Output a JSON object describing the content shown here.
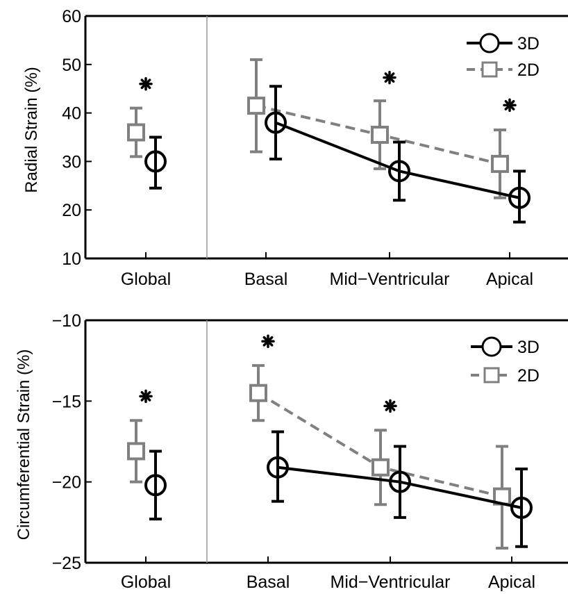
{
  "chart_data": [
    {
      "type": "scatter",
      "ylabel": "Radial Strain (%)",
      "ylim": [
        10,
        60
      ],
      "yticks": [
        10,
        20,
        30,
        40,
        50,
        60
      ],
      "categories": [
        "Global",
        "Basal",
        "Mid−Ventricular",
        "Apical"
      ],
      "grid": false,
      "legend_position": "top-right",
      "legend": [
        "3D",
        "2D"
      ],
      "series": [
        {
          "name": "3D",
          "marker": "circle",
          "color": "#000000",
          "line_style": "solid",
          "points": [
            {
              "category": "Global",
              "value": 30,
              "low": 24.5,
              "high": 35
            },
            {
              "category": "Basal",
              "value": 38,
              "low": 30.5,
              "high": 45.5
            },
            {
              "category": "Mid−Ventricular",
              "value": 28,
              "low": 22,
              "high": 34
            },
            {
              "category": "Apical",
              "value": 22.5,
              "low": 17.5,
              "high": 28
            }
          ]
        },
        {
          "name": "2D",
          "marker": "square",
          "color": "#808080",
          "line_style": "dashed",
          "points": [
            {
              "category": "Global",
              "value": 36,
              "low": 31,
              "high": 41
            },
            {
              "category": "Basal",
              "value": 41.5,
              "low": 32,
              "high": 51
            },
            {
              "category": "Mid−Ventricular",
              "value": 35.5,
              "low": 28.5,
              "high": 42.5
            },
            {
              "category": "Apical",
              "value": 29.5,
              "low": 22.5,
              "high": 36.5
            }
          ]
        }
      ],
      "significance": [
        {
          "category": "Global",
          "value": 46
        },
        {
          "category": "Mid−Ventricular",
          "value": 47.3
        },
        {
          "category": "Apical",
          "value": 41.6
        }
      ]
    },
    {
      "type": "scatter",
      "ylabel": "Circumferential Strain (%)",
      "ylim": [
        -25,
        -10
      ],
      "yticks": [
        -25,
        -20,
        -15,
        -10
      ],
      "ytick_labels": [
        "−25",
        "−20",
        "−15",
        "−10"
      ],
      "categories": [
        "Global",
        "Basal",
        "Mid−Ventricular",
        "Apical"
      ],
      "grid": false,
      "legend_position": "top-right",
      "legend": [
        "3D",
        "2D"
      ],
      "series": [
        {
          "name": "3D",
          "marker": "circle",
          "color": "#000000",
          "line_style": "solid",
          "points": [
            {
              "category": "Global",
              "value": -20.2,
              "low": -22.3,
              "high": -18.1
            },
            {
              "category": "Basal",
              "value": -19.1,
              "low": -21.2,
              "high": -16.9
            },
            {
              "category": "Mid−Ventricular",
              "value": -20,
              "low": -22.2,
              "high": -17.8
            },
            {
              "category": "Apical",
              "value": -21.6,
              "low": -24,
              "high": -19.2
            }
          ]
        },
        {
          "name": "2D",
          "marker": "square",
          "color": "#808080",
          "line_style": "dashed",
          "points": [
            {
              "category": "Global",
              "value": -18.1,
              "low": -20,
              "high": -16.2
            },
            {
              "category": "Basal",
              "value": -14.5,
              "low": -16.2,
              "high": -12.8
            },
            {
              "category": "Mid−Ventricular",
              "value": -19.1,
              "low": -21.4,
              "high": -16.8
            },
            {
              "category": "Apical",
              "value": -20.9,
              "low": -24.1,
              "high": -17.8
            }
          ]
        }
      ],
      "significance": [
        {
          "category": "Global",
          "value": -14.7
        },
        {
          "category": "Basal",
          "value": -11.3
        },
        {
          "category": "Mid−Ventricular",
          "value": -15.3
        }
      ]
    }
  ]
}
